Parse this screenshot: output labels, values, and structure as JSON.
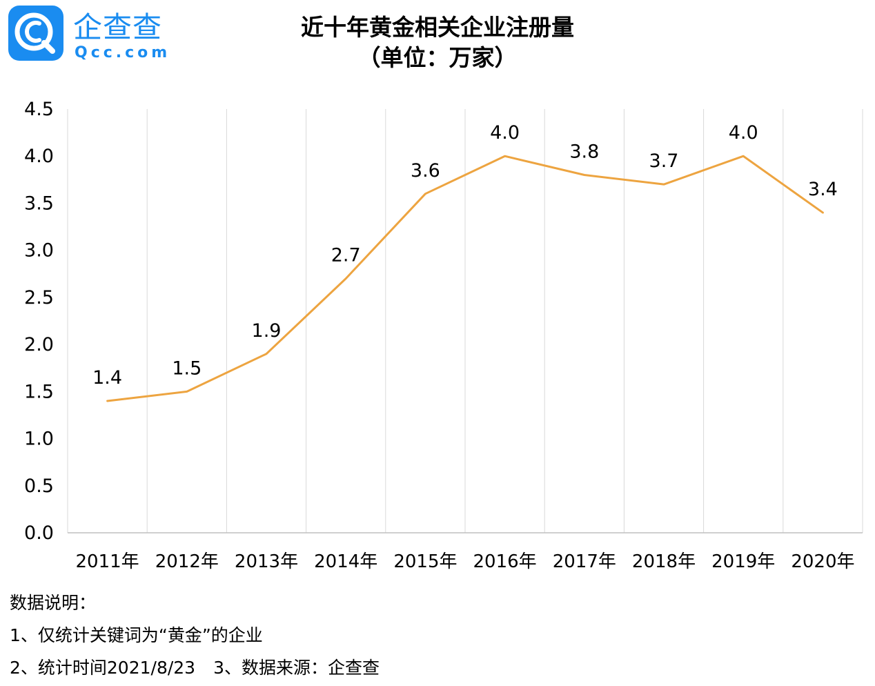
{
  "logo": {
    "name": "企查查",
    "domain": "Qcc.com",
    "color": "#1a8cf0"
  },
  "header": {
    "title_line1": "近十年黄金相关企业注册量",
    "title_line2": "（单位：万家）"
  },
  "chart_data": {
    "type": "line",
    "title": "近十年黄金相关企业注册量",
    "subtitle": "（单位：万家）",
    "categories": [
      "2011年",
      "2012年",
      "2013年",
      "2014年",
      "2015年",
      "2016年",
      "2017年",
      "2018年",
      "2019年",
      "2020年"
    ],
    "series": [
      {
        "values": [
          1.4,
          1.5,
          1.9,
          2.7,
          3.6,
          4.0,
          3.8,
          3.7,
          4.0,
          3.4
        ],
        "labels": [
          "1.4",
          "1.5",
          "1.9",
          "2.7",
          "3.6",
          "4.0",
          "3.8",
          "3.7",
          "4.0",
          "3.4"
        ],
        "color": "#eda440"
      }
    ],
    "ylim": [
      0,
      4.5
    ],
    "yticks": [
      "0.0",
      "0.5",
      "1.0",
      "1.5",
      "2.0",
      "2.5",
      "3.0",
      "3.5",
      "4.0",
      "4.5"
    ],
    "grid": "vertical",
    "legend": "none"
  },
  "notes": {
    "heading": "数据说明：",
    "line1": "1、仅统计关键词为“黄金”的企业",
    "line2a": "2、统计时间2021/8/23",
    "line2b": "3、数据来源：企查查"
  }
}
